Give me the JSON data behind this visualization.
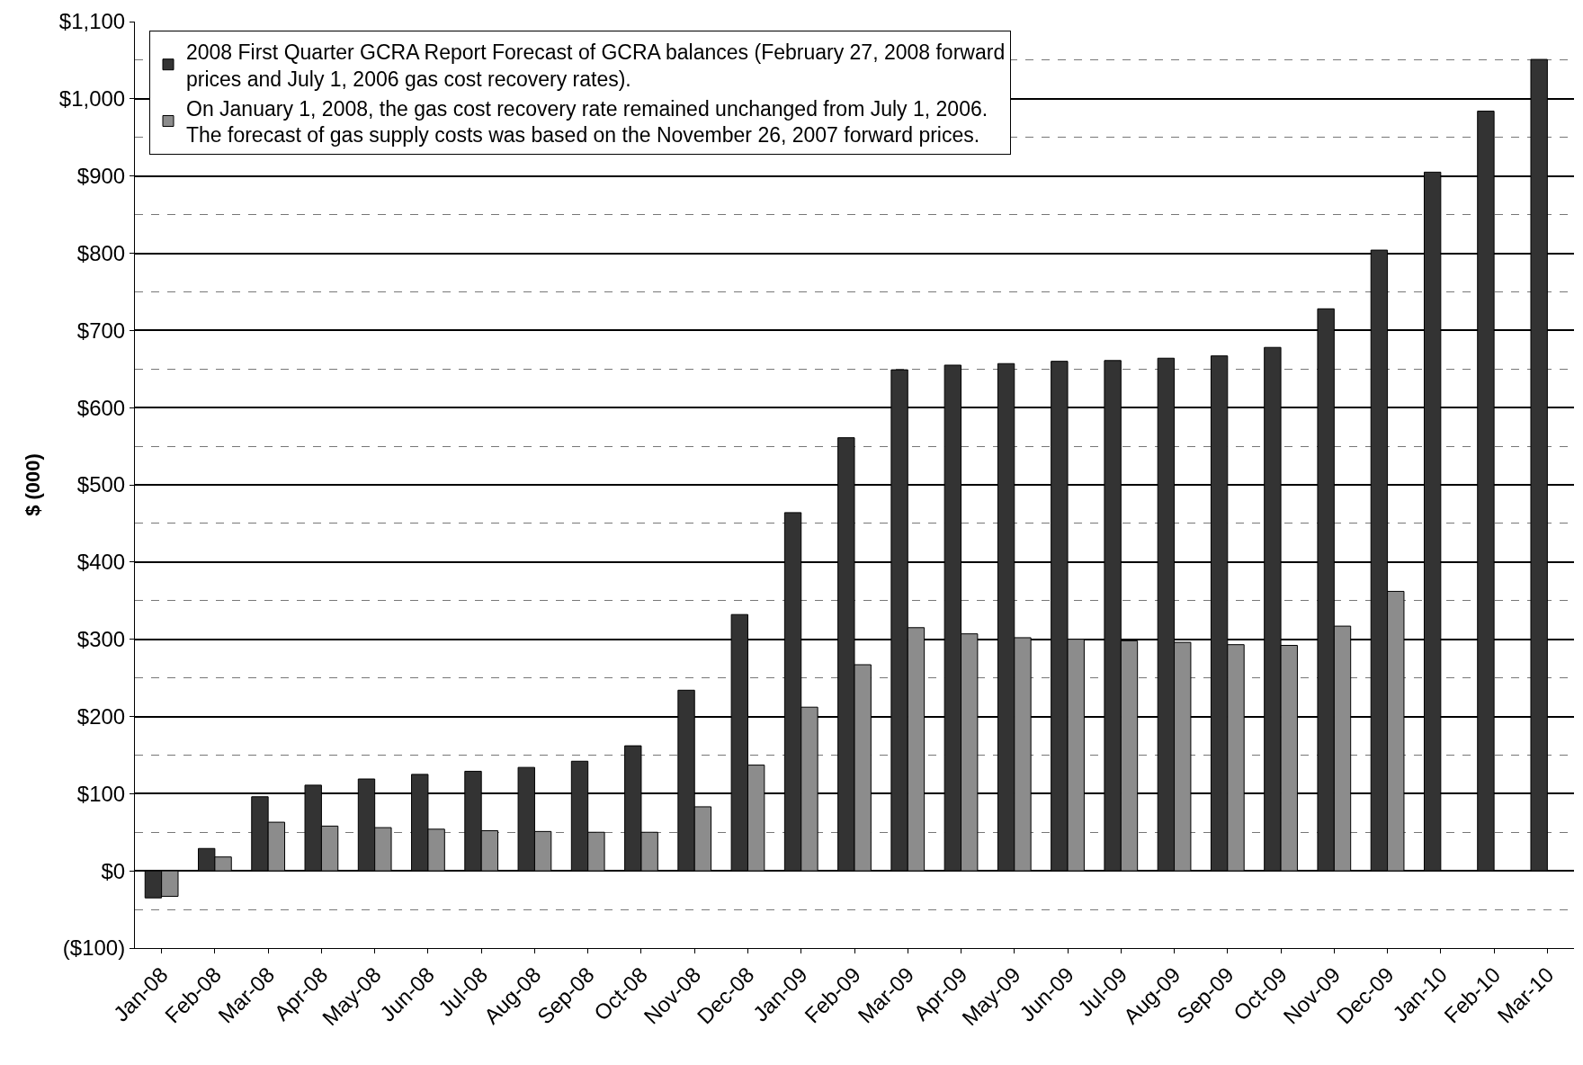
{
  "chart_data": {
    "type": "bar",
    "ylabel": "$ (000)",
    "categories": [
      "Jan-08",
      "Feb-08",
      "Mar-08",
      "Apr-08",
      "May-08",
      "Jun-08",
      "Jul-08",
      "Aug-08",
      "Sep-08",
      "Oct-08",
      "Nov-08",
      "Dec-08",
      "Jan-09",
      "Feb-09",
      "Mar-09",
      "Apr-09",
      "May-09",
      "Jun-09",
      "Jul-09",
      "Aug-09",
      "Sep-09",
      "Oct-09",
      "Nov-09",
      "Dec-09",
      "Jan-10",
      "Feb-10",
      "Mar-10"
    ],
    "series": [
      {
        "name": "2008 First Quarter GCRA Report Forecast of GCRA balances (February 27, 2008 forward prices and July 1, 2006 gas cost recovery rates).",
        "color": "#333333",
        "values": [
          -35,
          29,
          96,
          111,
          119,
          125,
          129,
          134,
          142,
          162,
          234,
          332,
          464,
          561,
          649,
          655,
          657,
          660,
          661,
          664,
          667,
          678,
          728,
          804,
          905,
          984,
          1051
        ]
      },
      {
        "name": "On January 1, 2008, the gas cost recovery rate remained unchanged from July 1, 2006. The forecast of gas supply costs was based on the November 26, 2007 forward prices.",
        "color": "#8c8c8c",
        "values": [
          -33,
          18,
          63,
          58,
          56,
          54,
          52,
          51,
          50,
          50,
          83,
          137,
          212,
          267,
          315,
          307,
          302,
          300,
          298,
          296,
          293,
          292,
          317,
          362,
          null,
          null,
          null
        ]
      }
    ],
    "ylim": [
      -100,
      1100
    ],
    "yticks": [
      {
        "value": -100,
        "label": "($100)"
      },
      {
        "value": 0,
        "label": "$0"
      },
      {
        "value": 100,
        "label": "$100"
      },
      {
        "value": 200,
        "label": "$200"
      },
      {
        "value": 300,
        "label": "$300"
      },
      {
        "value": 400,
        "label": "$400"
      },
      {
        "value": 500,
        "label": "$500"
      },
      {
        "value": 600,
        "label": "$600"
      },
      {
        "value": 700,
        "label": "$700"
      },
      {
        "value": 800,
        "label": "$800"
      },
      {
        "value": 900,
        "label": "$900"
      },
      {
        "value": 1000,
        "label": "$1,000"
      },
      {
        "value": 1100,
        "label": "$1,100"
      }
    ],
    "grid": "y",
    "legend": "top left"
  }
}
